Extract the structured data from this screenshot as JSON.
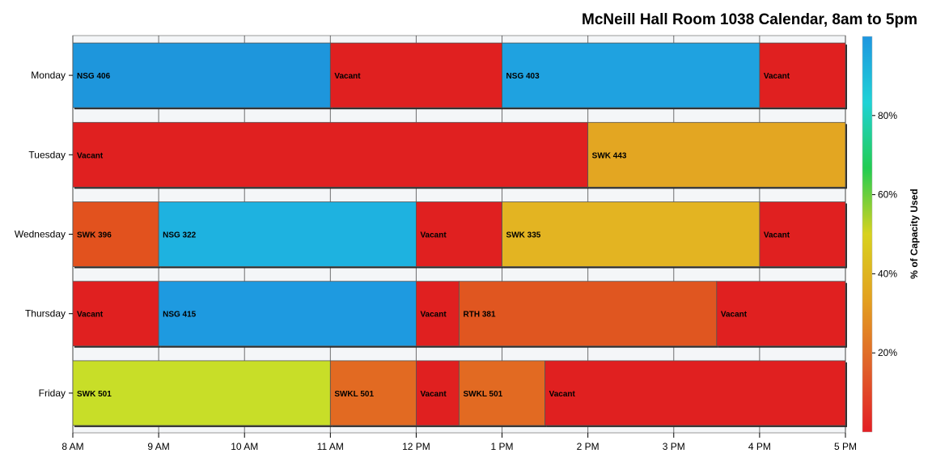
{
  "title": "McNeill Hall Room 1038 Calendar, 8am to 5pm",
  "chart_data": {
    "type": "bar",
    "orientation": "horizontal-timeline",
    "title": "McNeill Hall Room 1038 Calendar, 8am to 5pm",
    "days": [
      "Monday",
      "Tuesday",
      "Wednesday",
      "Thursday",
      "Friday"
    ],
    "x_range": [
      8,
      17
    ],
    "x_ticks": [
      {
        "value": 8,
        "label": "8 AM"
      },
      {
        "value": 9,
        "label": "9 AM"
      },
      {
        "value": 10,
        "label": "10 AM"
      },
      {
        "value": 11,
        "label": "11 AM"
      },
      {
        "value": 12,
        "label": "12 PM"
      },
      {
        "value": 13,
        "label": "1 PM"
      },
      {
        "value": 14,
        "label": "2 PM"
      },
      {
        "value": 15,
        "label": "3 PM"
      },
      {
        "value": 16,
        "label": "4 PM"
      },
      {
        "value": 17,
        "label": "5 PM"
      }
    ],
    "colorbar": {
      "label": "% of Capacity Used",
      "ticks": [
        {
          "value": 20,
          "label": "20%"
        },
        {
          "value": 40,
          "label": "40%"
        },
        {
          "value": 60,
          "label": "60%"
        },
        {
          "value": 80,
          "label": "80%"
        }
      ],
      "range": [
        0,
        100
      ],
      "stops": [
        "#e31e24",
        "#e0622a",
        "#e3a020",
        "#d8d21f",
        "#22cc52",
        "#20d2d6",
        "#1e96e0"
      ]
    },
    "events": [
      {
        "day": "Monday",
        "label": "NSG 406",
        "start": 8,
        "end": 11,
        "color": "#1e96dc"
      },
      {
        "day": "Monday",
        "label": "Vacant",
        "start": 11,
        "end": 13,
        "color": "#e02020"
      },
      {
        "day": "Monday",
        "label": "NSG 403",
        "start": 13,
        "end": 16,
        "color": "#1fa2e0"
      },
      {
        "day": "Monday",
        "label": "Vacant",
        "start": 16,
        "end": 17,
        "color": "#e02020"
      },
      {
        "day": "Tuesday",
        "label": "Vacant",
        "start": 8,
        "end": 14,
        "color": "#e02020"
      },
      {
        "day": "Tuesday",
        "label": "SWK 443",
        "start": 14,
        "end": 17,
        "color": "#e3a622"
      },
      {
        "day": "Wednesday",
        "label": "SWK 396",
        "start": 8,
        "end": 9,
        "color": "#e2521e"
      },
      {
        "day": "Wednesday",
        "label": "NSG 322",
        "start": 9,
        "end": 12,
        "color": "#1eb2e0"
      },
      {
        "day": "Wednesday",
        "label": "Vacant",
        "start": 12,
        "end": 13,
        "color": "#e02020"
      },
      {
        "day": "Wednesday",
        "label": "SWK 335",
        "start": 13,
        "end": 16,
        "color": "#e3b422"
      },
      {
        "day": "Wednesday",
        "label": "Vacant",
        "start": 16,
        "end": 17,
        "color": "#e02020"
      },
      {
        "day": "Thursday",
        "label": "Vacant",
        "start": 8,
        "end": 9,
        "color": "#e02020"
      },
      {
        "day": "Thursday",
        "label": "NSG 415",
        "start": 9,
        "end": 12,
        "color": "#1e9ae0"
      },
      {
        "day": "Thursday",
        "label": "Vacant",
        "start": 12,
        "end": 12.5,
        "color": "#e02020"
      },
      {
        "day": "Thursday",
        "label": "RTH 381",
        "start": 12.5,
        "end": 15.5,
        "color": "#e05620"
      },
      {
        "day": "Thursday",
        "label": "Vacant",
        "start": 15.5,
        "end": 17,
        "color": "#e02020"
      },
      {
        "day": "Friday",
        "label": "SWK 501",
        "start": 8,
        "end": 11,
        "color": "#c8de28"
      },
      {
        "day": "Friday",
        "label": "SWKL 501",
        "start": 11,
        "end": 12,
        "color": "#e26a22"
      },
      {
        "day": "Friday",
        "label": "Vacant",
        "start": 12,
        "end": 12.5,
        "color": "#e02020"
      },
      {
        "day": "Friday",
        "label": "SWKL 501",
        "start": 12.5,
        "end": 13.5,
        "color": "#e26a22"
      },
      {
        "day": "Friday",
        "label": "Vacant",
        "start": 13.5,
        "end": 17,
        "color": "#e02020"
      }
    ]
  }
}
